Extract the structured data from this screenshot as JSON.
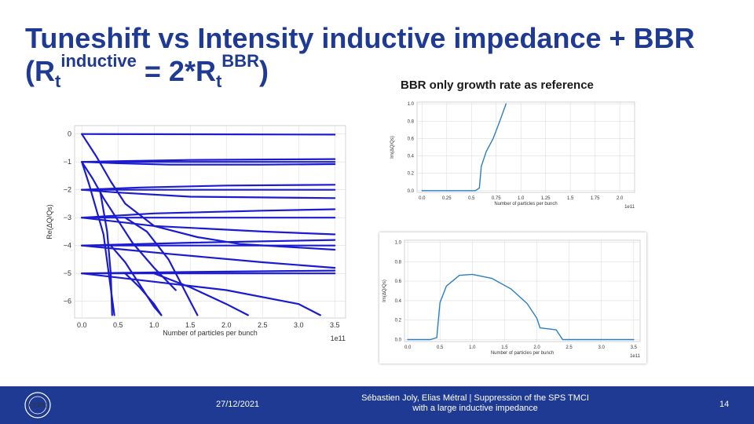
{
  "slide": {
    "title_line1": "Tuneshift vs Intensity inductive impedance + BBR",
    "title_line2": {
      "open": "(R",
      "sub1": "t",
      "sup1": "inductive",
      "eq": " = 2*R",
      "sub2": "t",
      "sup2": "BBR",
      "close": ")"
    },
    "ref_caption": "BBR only growth rate as reference",
    "accent": "#1f3a93"
  },
  "footer": {
    "logo_text": "CERN",
    "date": "27/12/2021",
    "author_line1": "Sébastien Joly, Elias Métral | Suppression of the SPS TMCI",
    "author_line2": "with a large inductive impedance",
    "page": "14"
  },
  "chart_data": [
    {
      "id": "tuneshift",
      "type": "line",
      "title": "",
      "xlabel": "Number of particles per bunch",
      "ylabel": "Re(ΔQ/Qs)",
      "x_offset_label": "1e11",
      "xlim": [
        -0.1,
        3.65
      ],
      "ylim": [
        -6.6,
        0.3
      ],
      "xticks": [
        "0.0",
        "0.5",
        "1.0",
        "1.5",
        "2.0",
        "2.5",
        "3.0",
        "3.5"
      ],
      "yticks": [
        "0",
        "−1",
        "−2",
        "−3",
        "−4",
        "−5",
        "−6"
      ],
      "series_color": "#1b1bd0",
      "series": [
        {
          "name": "mode 0",
          "x": [
            0,
            3.5
          ],
          "y": [
            0,
            -0.02
          ]
        },
        {
          "name": "mode -1 a",
          "x": [
            0,
            0.6,
            1.5,
            3.5
          ],
          "y": [
            -1,
            -0.97,
            -0.93,
            -0.9
          ]
        },
        {
          "name": "mode -1 b",
          "x": [
            0,
            3.5
          ],
          "y": [
            -1,
            -1
          ]
        },
        {
          "name": "mode -1 c",
          "x": [
            0,
            0.5,
            1.2,
            2.5,
            3.5
          ],
          "y": [
            -1,
            -1.05,
            -1.1,
            -1.1,
            -1.08
          ]
        },
        {
          "name": "mode -2 a",
          "x": [
            0,
            0.8,
            2.0,
            3.5
          ],
          "y": [
            -2,
            -1.92,
            -1.85,
            -1.82
          ]
        },
        {
          "name": "mode -2 b",
          "x": [
            0,
            3.5
          ],
          "y": [
            -2,
            -2
          ]
        },
        {
          "name": "mode -2 c",
          "x": [
            0,
            0.5,
            1.5,
            3.5
          ],
          "y": [
            -2,
            -2.1,
            -2.25,
            -2.3
          ]
        },
        {
          "name": "mode -3 a",
          "x": [
            0,
            1.0,
            2.5,
            3.5
          ],
          "y": [
            -3,
            -2.85,
            -2.75,
            -2.7
          ]
        },
        {
          "name": "mode -3 b",
          "x": [
            0,
            3.5
          ],
          "y": [
            -3,
            -3
          ]
        },
        {
          "name": "mode -3 c",
          "x": [
            0,
            1.0,
            2.5,
            3.5
          ],
          "y": [
            -3,
            -3.3,
            -3.5,
            -3.6
          ]
        },
        {
          "name": "mode -4 a",
          "x": [
            0,
            1.5,
            3.5
          ],
          "y": [
            -4,
            -3.9,
            -3.8
          ]
        },
        {
          "name": "mode -4 b",
          "x": [
            0,
            3.5
          ],
          "y": [
            -4,
            -4
          ]
        },
        {
          "name": "mode -4 c",
          "x": [
            0,
            1.2,
            2.5,
            3.5
          ],
          "y": [
            -4,
            -4.3,
            -4.6,
            -4.8
          ]
        },
        {
          "name": "mode -5 a",
          "x": [
            0,
            1.5,
            3.5
          ],
          "y": [
            -5,
            -4.95,
            -4.9
          ]
        },
        {
          "name": "mode -5 b",
          "x": [
            0,
            3.5
          ],
          "y": [
            -5,
            -5
          ]
        },
        {
          "name": "mode -5 c",
          "x": [
            0,
            1.0,
            2.0,
            3.0,
            3.3
          ],
          "y": [
            -5,
            -5.3,
            -5.6,
            -6.1,
            -6.5
          ]
        },
        {
          "name": "branch 1",
          "x": [
            0,
            0.2,
            0.4,
            0.6,
            1.0,
            1.6,
            2.2,
            3.5
          ],
          "y": [
            0,
            -0.8,
            -1.7,
            -2.5,
            -3.3,
            -3.7,
            -3.95,
            -4.15
          ]
        },
        {
          "name": "branch 2",
          "x": [
            0,
            0.15,
            0.3,
            0.5,
            0.7,
            1.0,
            1.3
          ],
          "y": [
            -1,
            -1.6,
            -2.3,
            -3.1,
            -3.9,
            -4.8,
            -5.6
          ]
        },
        {
          "name": "branch 3",
          "x": [
            0,
            0.1,
            0.3,
            0.45
          ],
          "y": [
            -1,
            -1.8,
            -3.6,
            -6.5
          ]
        },
        {
          "name": "branch 4",
          "x": [
            0.25,
            0.35,
            0.4,
            0.42
          ],
          "y": [
            -2,
            -3.5,
            -5,
            -6.5
          ]
        },
        {
          "name": "branch 5",
          "x": [
            0.6,
            0.9,
            1.2,
            1.5,
            1.6
          ],
          "y": [
            -3,
            -3.5,
            -4.5,
            -6.0,
            -6.5
          ]
        },
        {
          "name": "branch 6",
          "x": [
            0.4,
            0.6,
            0.8,
            1.0,
            1.1
          ],
          "y": [
            -4,
            -4.6,
            -5.4,
            -6.2,
            -6.5
          ]
        },
        {
          "name": "branch 7",
          "x": [
            0.6,
            0.8,
            1.0,
            1.1
          ],
          "y": [
            -5,
            -5.5,
            -6.1,
            -6.5
          ]
        },
        {
          "name": "branch 8",
          "x": [
            1.0,
            1.5,
            2.0,
            2.3
          ],
          "y": [
            -5,
            -5.5,
            -6.1,
            -6.5
          ]
        }
      ]
    },
    {
      "id": "growth-top",
      "type": "line",
      "title": "",
      "xlabel": "Number of particles per bunch",
      "ylabel": "Im(ΔQ/Qs)",
      "x_offset_label": "1e11",
      "xlim": [
        -0.05,
        2.15
      ],
      "ylim": [
        -0.02,
        1.02
      ],
      "xticks": [
        "0.0",
        "0.25",
        "0.5",
        "0.75",
        "1.0",
        "1.25",
        "1.5",
        "1.75",
        "2.0"
      ],
      "yticks": [
        "0.0",
        "0.2",
        "0.4",
        "0.6",
        "0.8",
        "1.0"
      ],
      "series_color": "#2a7fc4",
      "series": [
        {
          "name": "growth rate",
          "x": [
            0,
            0.54,
            0.58,
            0.6,
            0.65,
            0.72,
            0.78,
            0.85
          ],
          "y": [
            0,
            0,
            0.03,
            0.28,
            0.45,
            0.6,
            0.78,
            1.0
          ]
        }
      ]
    },
    {
      "id": "growth-bottom",
      "type": "line",
      "title": "",
      "xlabel": "Number of particles per bunch",
      "ylabel": "Im(ΔQ/Qs)",
      "x_offset_label": "1e11",
      "xlim": [
        -0.05,
        3.6
      ],
      "ylim": [
        -0.02,
        1.02
      ],
      "xticks": [
        "0.0",
        "0.5",
        "1.0",
        "1.5",
        "2.0",
        "2.5",
        "3.0",
        "3.5"
      ],
      "yticks": [
        "0.0",
        "0.2",
        "0.4",
        "0.6",
        "0.8",
        "1.0"
      ],
      "series_color": "#2a7fc4",
      "series": [
        {
          "name": "growth rate",
          "x": [
            0,
            0.35,
            0.45,
            0.5,
            0.6,
            0.8,
            1.0,
            1.3,
            1.6,
            1.85,
            2.0,
            2.05,
            2.3,
            2.4,
            3.5
          ],
          "y": [
            0,
            0,
            0.02,
            0.38,
            0.55,
            0.66,
            0.67,
            0.63,
            0.52,
            0.37,
            0.22,
            0.12,
            0.1,
            0,
            0
          ]
        }
      ]
    }
  ]
}
